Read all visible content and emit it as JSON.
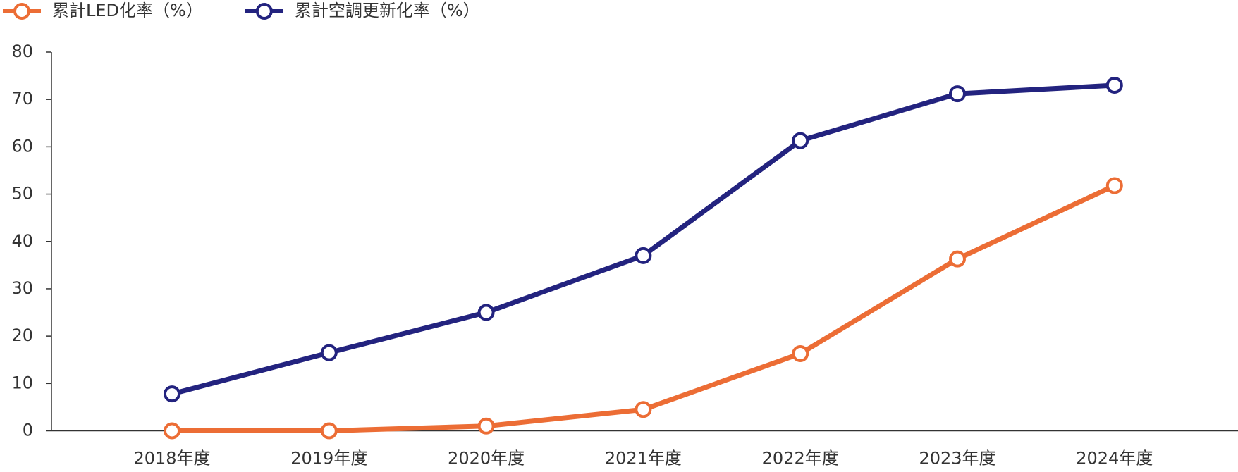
{
  "chart_data": {
    "type": "line",
    "categories": [
      "2018年度",
      "2019年度",
      "2020年度",
      "2021年度",
      "2022年度",
      "2023年度",
      "2024年度"
    ],
    "series": [
      {
        "name": "累計LED化率（%）",
        "color": "#ec6d35",
        "values": [
          0,
          0,
          1,
          4.5,
          16.3,
          36.3,
          51.8
        ]
      },
      {
        "name": "累計空調更新化率（%）",
        "color": "#23237f",
        "values": [
          7.8,
          16.5,
          25,
          37,
          61.3,
          71.2,
          73
        ]
      }
    ],
    "ylim": [
      0,
      80
    ],
    "yticks": [
      0,
      10,
      20,
      30,
      40,
      50,
      60,
      70,
      80
    ]
  }
}
